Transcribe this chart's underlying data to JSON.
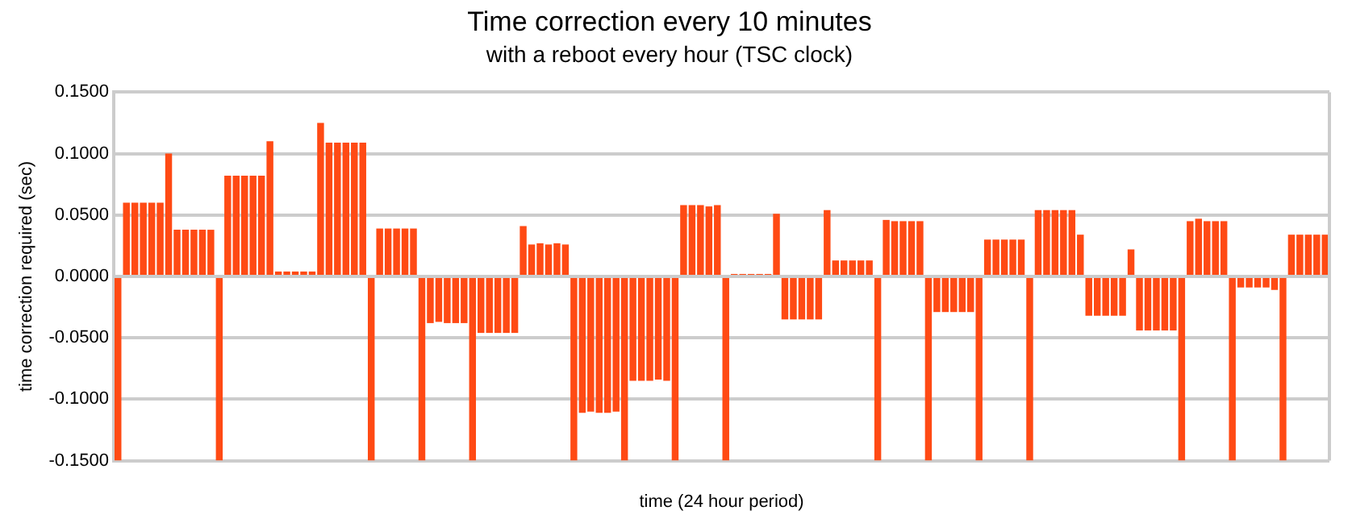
{
  "chart_data": {
    "type": "bar",
    "title": "Time correction every 10 minutes",
    "subtitle": "with a reboot every hour (TSC clock)",
    "xlabel": "time (24 hour period)",
    "ylabel": "time correction required (sec)",
    "categories": [
      null,
      null,
      null,
      null,
      null,
      null,
      null,
      null,
      null,
      null,
      null,
      null,
      null,
      null,
      null,
      null,
      null,
      null,
      null,
      null,
      null,
      null,
      null,
      null,
      null,
      null,
      null,
      null,
      null,
      null,
      null,
      null,
      null,
      null,
      null,
      null,
      null,
      null,
      null,
      null,
      null,
      null,
      null,
      null,
      null,
      null,
      null,
      null,
      null,
      null,
      null,
      null,
      null,
      null,
      null,
      null,
      null,
      null,
      null,
      null,
      null,
      null,
      null,
      null,
      null,
      null,
      null,
      null,
      null,
      null,
      null,
      null,
      null,
      null,
      null,
      null,
      null,
      null,
      null,
      null,
      null,
      null,
      null,
      null,
      null,
      null,
      null,
      null,
      null,
      null,
      null,
      null,
      null,
      null,
      null,
      null,
      null,
      null,
      null,
      null,
      null,
      null,
      null,
      null,
      null,
      null,
      null,
      null,
      null,
      null,
      null,
      null,
      null,
      null,
      null,
      null,
      null,
      null,
      null,
      null,
      null,
      null,
      null,
      null,
      null,
      null,
      null,
      null,
      null,
      null,
      null,
      null,
      null,
      null,
      null,
      null,
      null,
      null,
      null,
      null,
      null,
      null,
      null,
      null
    ],
    "values": [
      -0.15,
      0.06,
      0.06,
      0.06,
      0.06,
      0.06,
      0.1,
      0.038,
      0.038,
      0.038,
      0.038,
      0.038,
      -0.15,
      0.082,
      0.082,
      0.082,
      0.082,
      0.082,
      0.11,
      0.004,
      0.004,
      0.004,
      0.004,
      0.004,
      0.125,
      0.109,
      0.109,
      0.109,
      0.109,
      0.109,
      -0.15,
      0.039,
      0.039,
      0.039,
      0.039,
      0.039,
      -0.15,
      -0.038,
      -0.037,
      -0.038,
      -0.038,
      -0.038,
      -0.15,
      -0.046,
      -0.046,
      -0.046,
      -0.046,
      -0.046,
      0.041,
      0.026,
      0.027,
      0.026,
      0.027,
      0.026,
      -0.15,
      -0.111,
      -0.11,
      -0.111,
      -0.111,
      -0.11,
      -0.15,
      -0.085,
      -0.085,
      -0.085,
      -0.084,
      -0.085,
      -0.15,
      0.058,
      0.058,
      0.058,
      0.057,
      0.058,
      -0.15,
      0.002,
      0.002,
      0.002,
      0.002,
      0.002,
      0.051,
      -0.035,
      -0.035,
      -0.035,
      -0.035,
      -0.035,
      0.054,
      0.013,
      0.013,
      0.013,
      0.013,
      0.013,
      -0.15,
      0.046,
      0.045,
      0.045,
      0.045,
      0.045,
      -0.15,
      -0.029,
      -0.029,
      -0.029,
      -0.029,
      -0.029,
      -0.15,
      0.03,
      0.03,
      0.03,
      0.03,
      0.03,
      -0.15,
      0.054,
      0.054,
      0.054,
      0.054,
      0.054,
      0.034,
      -0.032,
      -0.032,
      -0.032,
      -0.032,
      -0.032,
      0.022,
      -0.044,
      -0.044,
      -0.044,
      -0.044,
      -0.044,
      -0.15,
      0.045,
      0.047,
      0.045,
      0.045,
      0.045,
      -0.15,
      -0.009,
      -0.009,
      -0.009,
      -0.009,
      -0.011,
      -0.15,
      0.034,
      0.034,
      0.034,
      0.034,
      0.034
    ],
    "color": "#ff4a14",
    "ylim": [
      -0.15,
      0.15
    ],
    "yticks": [
      {
        "value": -0.15,
        "label": "-0.1500"
      },
      {
        "value": -0.1,
        "label": "-0.1000"
      },
      {
        "value": -0.05,
        "label": "-0.0500"
      },
      {
        "value": 0,
        "label": "0.0000"
      },
      {
        "value": 0.05,
        "label": "0.0500"
      },
      {
        "value": 0.1,
        "label": "0.1000"
      },
      {
        "value": 0.15,
        "label": "0.1500"
      }
    ],
    "grid": "y",
    "legend": false
  }
}
